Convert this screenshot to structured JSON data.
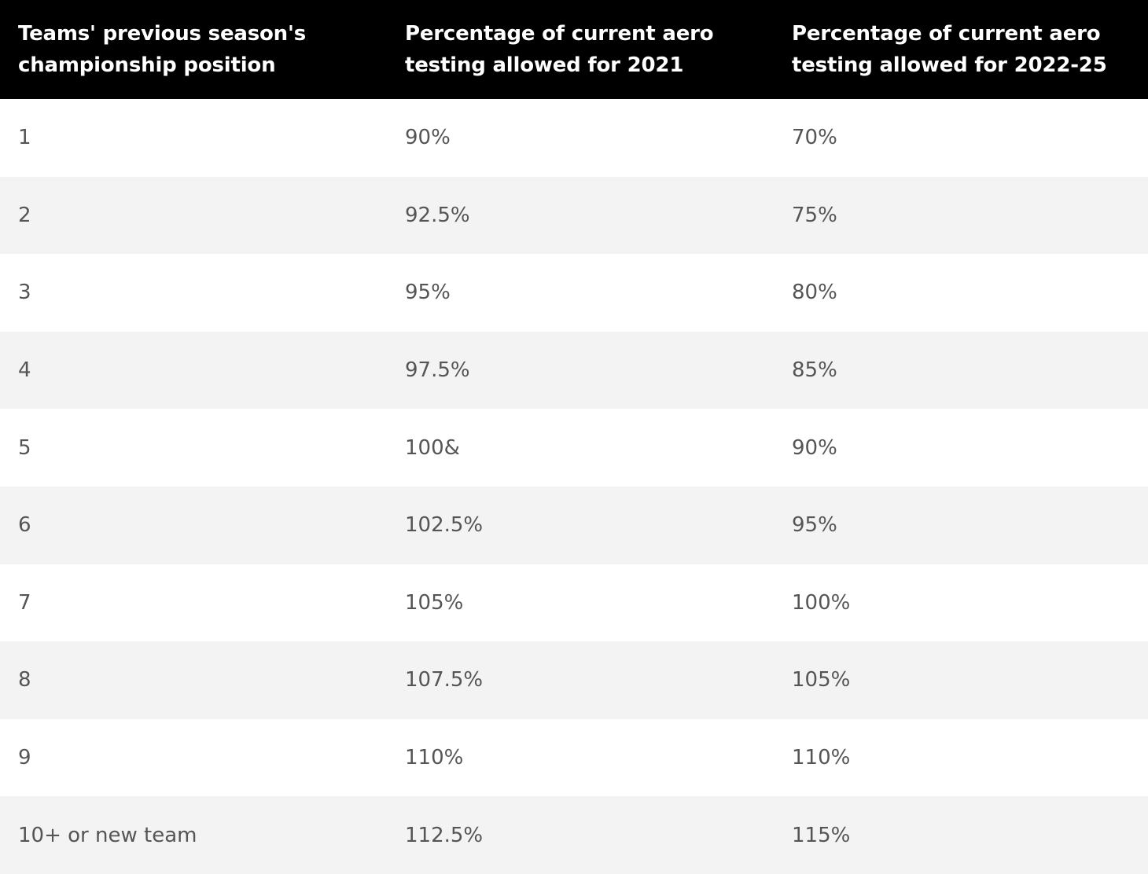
{
  "table": {
    "headers": [
      "Teams' previous season's\nchampionship position",
      "Percentage of current aero\ntesting allowed for 2021",
      "Percentage of current aero\ntesting allowed for 2022-25"
    ],
    "rows": [
      [
        "1",
        "90%",
        "70%"
      ],
      [
        "2",
        "92.5%",
        "75%"
      ],
      [
        "3",
        "95%",
        "80%"
      ],
      [
        "4",
        "97.5%",
        "85%"
      ],
      [
        "5",
        "100&",
        "90%"
      ],
      [
        "6",
        "102.5%",
        "95%"
      ],
      [
        "7",
        "105%",
        "100%"
      ],
      [
        "8",
        "107.5%",
        "105%"
      ],
      [
        "9",
        "110%",
        "110%"
      ],
      [
        "10+ or new team",
        "112.5%",
        "115%"
      ]
    ]
  }
}
